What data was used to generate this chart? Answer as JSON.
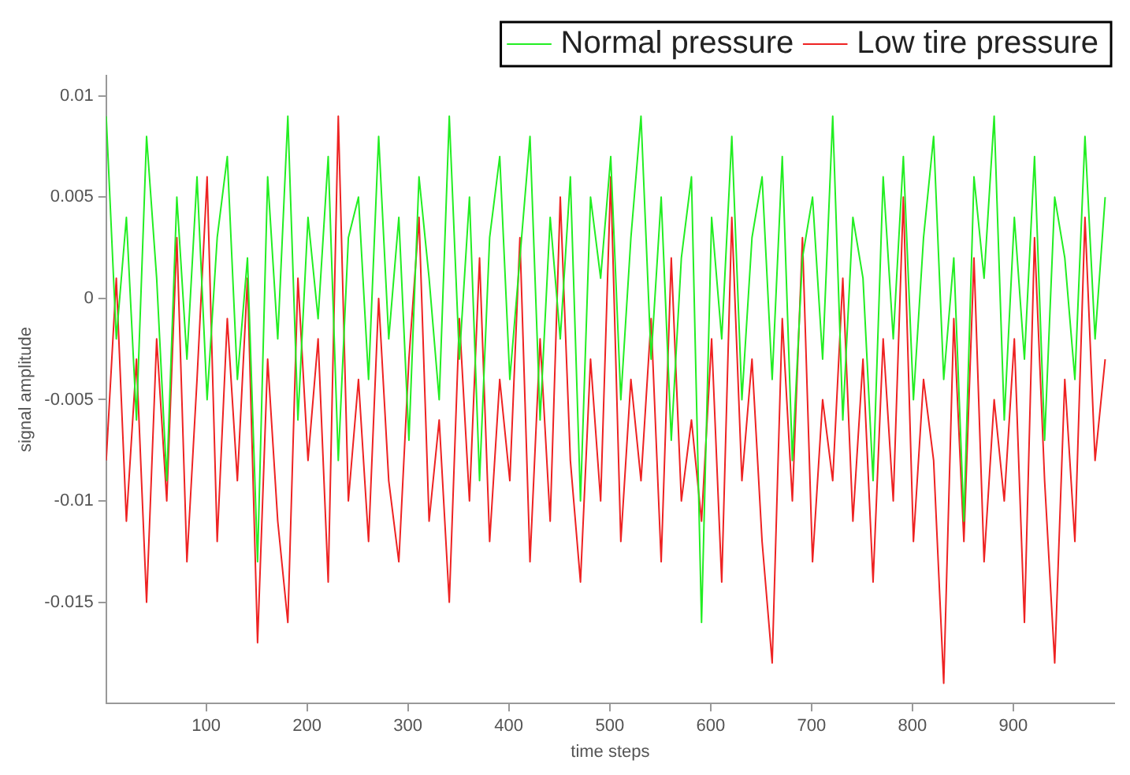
{
  "chart_data": {
    "type": "line",
    "xlabel": "time steps",
    "ylabel": "signal amplitude",
    "x": [
      1,
      11,
      21,
      31,
      41,
      51,
      61,
      71,
      81,
      91,
      101,
      111,
      121,
      131,
      141,
      151,
      161,
      171,
      181,
      191,
      201,
      211,
      221,
      231,
      241,
      251,
      261,
      271,
      281,
      291,
      301,
      311,
      321,
      331,
      341,
      351,
      361,
      371,
      381,
      391,
      401,
      411,
      421,
      431,
      441,
      451,
      461,
      471,
      481,
      491,
      501,
      511,
      521,
      531,
      541,
      551,
      561,
      571,
      581,
      591,
      601,
      611,
      621,
      631,
      641,
      651,
      661,
      671,
      681,
      691,
      701,
      711,
      721,
      731,
      741,
      751,
      761,
      771,
      781,
      791,
      801,
      811,
      821,
      831,
      841,
      851,
      861,
      871,
      881,
      891,
      901,
      911,
      921,
      931,
      941,
      951,
      961,
      971,
      981,
      991
    ],
    "series": [
      {
        "name": "Normal pressure",
        "color": "#22ee22",
        "values": [
          0.009,
          -0.002,
          0.004,
          -0.006,
          0.008,
          0.001,
          -0.009,
          0.005,
          -0.003,
          0.006,
          -0.005,
          0.003,
          0.007,
          -0.004,
          0.002,
          -0.013,
          0.006,
          -0.002,
          0.009,
          -0.006,
          0.004,
          -0.001,
          0.007,
          -0.008,
          0.003,
          0.005,
          -0.004,
          0.008,
          -0.002,
          0.004,
          -0.007,
          0.006,
          0.001,
          -0.005,
          0.009,
          -0.003,
          0.005,
          -0.009,
          0.003,
          0.007,
          -0.004,
          0.002,
          0.008,
          -0.006,
          0.004,
          -0.002,
          0.006,
          -0.01,
          0.005,
          0.001,
          0.007,
          -0.005,
          0.003,
          0.009,
          -0.003,
          0.005,
          -0.007,
          0.002,
          0.006,
          -0.016,
          0.004,
          -0.002,
          0.008,
          -0.005,
          0.003,
          0.006,
          -0.004,
          0.007,
          -0.008,
          0.002,
          0.005,
          -0.003,
          0.009,
          -0.006,
          0.004,
          0.001,
          -0.009,
          0.006,
          -0.002,
          0.007,
          -0.005,
          0.003,
          0.008,
          -0.004,
          0.002,
          -0.011,
          0.006,
          0.001,
          0.009,
          -0.006,
          0.004,
          -0.003,
          0.007,
          -0.007,
          0.005,
          0.002,
          -0.004,
          0.008,
          -0.002,
          0.005
        ]
      },
      {
        "name": "Low tire pressure",
        "color": "#ee2222",
        "values": [
          -0.008,
          0.001,
          -0.011,
          -0.003,
          -0.015,
          -0.002,
          -0.01,
          0.003,
          -0.013,
          -0.004,
          0.006,
          -0.012,
          -0.001,
          -0.009,
          0.001,
          -0.017,
          -0.003,
          -0.011,
          -0.016,
          0.001,
          -0.008,
          -0.002,
          -0.014,
          0.009,
          -0.01,
          -0.004,
          -0.012,
          0.0,
          -0.009,
          -0.013,
          -0.003,
          0.004,
          -0.011,
          -0.006,
          -0.015,
          -0.001,
          -0.01,
          0.002,
          -0.012,
          -0.004,
          -0.009,
          0.003,
          -0.013,
          -0.002,
          -0.011,
          0.005,
          -0.008,
          -0.014,
          -0.003,
          -0.01,
          0.006,
          -0.012,
          -0.004,
          -0.009,
          -0.001,
          -0.013,
          0.002,
          -0.01,
          -0.006,
          -0.011,
          -0.002,
          -0.014,
          0.004,
          -0.009,
          -0.003,
          -0.012,
          -0.018,
          -0.001,
          -0.01,
          0.003,
          -0.013,
          -0.005,
          -0.009,
          0.001,
          -0.011,
          -0.003,
          -0.014,
          -0.002,
          -0.01,
          0.005,
          -0.012,
          -0.004,
          -0.008,
          -0.019,
          -0.001,
          -0.012,
          0.002,
          -0.013,
          -0.005,
          -0.01,
          -0.002,
          -0.016,
          0.003,
          -0.009,
          -0.018,
          -0.004,
          -0.012,
          0.004,
          -0.008,
          -0.003
        ]
      }
    ],
    "xlim": [
      1,
      1000
    ],
    "xticks": [
      100,
      200,
      300,
      400,
      500,
      600,
      700,
      800,
      900
    ],
    "ylim": [
      -0.02,
      0.011
    ],
    "yticks": [
      -0.015,
      -0.01,
      -0.005,
      0,
      0.005,
      0.01
    ],
    "grid": false,
    "legend": "top right",
    "marker": "none",
    "line_style": "solid"
  }
}
